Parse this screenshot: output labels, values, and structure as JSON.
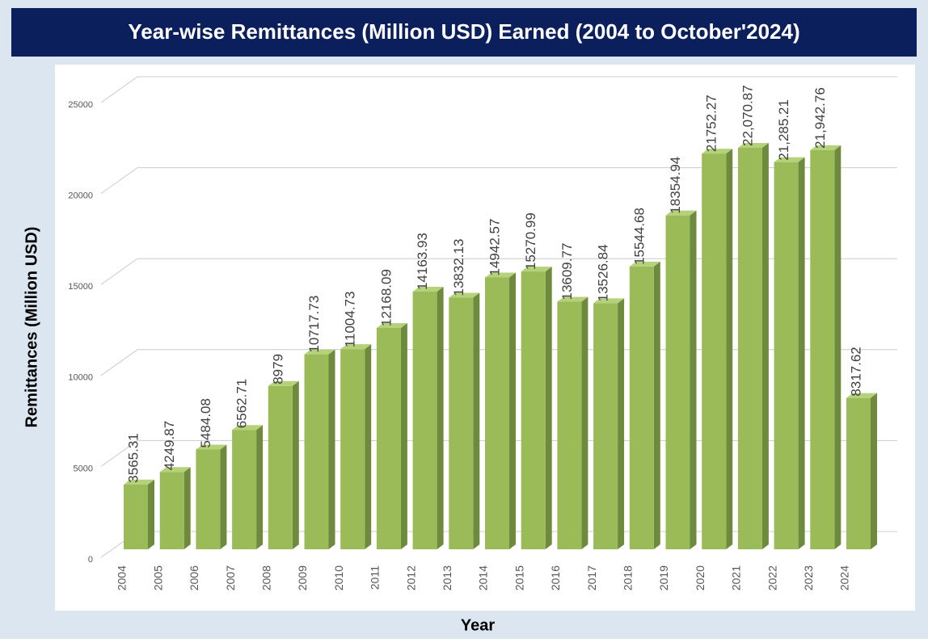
{
  "chart_data": {
    "type": "bar3d",
    "title": "Year-wise Remittances (Million USD) Earned (2004 to October'2024)",
    "x_label": "Year",
    "y_label": "Remittances (Million USD)",
    "categories": [
      "2004",
      "2005",
      "2006",
      "2007",
      "2008",
      "2009",
      "2010",
      "2011",
      "2012",
      "2013",
      "2014",
      "2015",
      "2016",
      "2017",
      "2018",
      "2019",
      "2020",
      "2021",
      "2022",
      "2023",
      "2024"
    ],
    "values": [
      3565.31,
      4249.87,
      5484.08,
      6562.71,
      8979,
      10717.73,
      11004.73,
      12168.09,
      14163.93,
      13832.13,
      14942.57,
      15270.99,
      13609.77,
      13526.84,
      15544.68,
      18354.94,
      21752.27,
      22070.87,
      21285.21,
      21942.76,
      8317.62
    ],
    "value_labels": [
      "3565.31",
      "4249.87",
      "5484.08",
      "6562.71",
      "8979",
      "10717.73",
      "11004.73",
      "12168.09",
      "14163.93",
      "13832.13",
      "14942.57",
      "15270.99",
      "13609.77",
      "13526.84",
      "15544.68",
      "18354.94",
      "21752.27",
      "22,070.87",
      "21,285.21",
      "21,942.76",
      "8317.62"
    ],
    "color": "#9bbb59",
    "ylim": [
      0,
      25000
    ],
    "yticks": [
      0,
      5000,
      10000,
      15000,
      20000,
      25000
    ],
    "grid": true
  }
}
